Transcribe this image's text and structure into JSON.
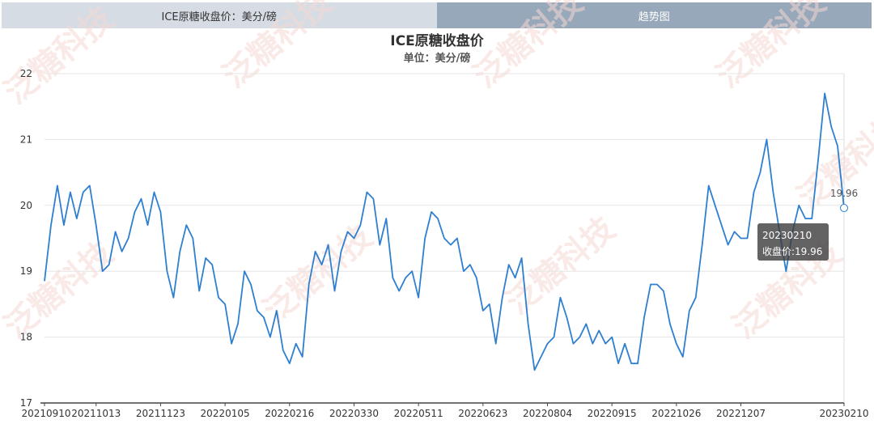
{
  "tabs": [
    "ICE原糖收盘价：美分/磅",
    "趋势图"
  ],
  "watermark": "泛糖科技",
  "chart_data": {
    "type": "line",
    "title": "ICE原糖收盘价",
    "subtitle": "单位：美分/磅",
    "categories": [
      "20210910",
      null,
      null,
      null,
      null,
      null,
      null,
      null,
      "20211013",
      null,
      null,
      null,
      null,
      null,
      null,
      null,
      null,
      null,
      "20211123",
      null,
      null,
      null,
      null,
      null,
      null,
      null,
      null,
      null,
      "20220105",
      null,
      null,
      null,
      null,
      null,
      null,
      null,
      null,
      null,
      "20220216",
      null,
      null,
      null,
      null,
      null,
      null,
      null,
      null,
      null,
      "20220330",
      null,
      null,
      null,
      null,
      null,
      null,
      null,
      null,
      null,
      "20220511",
      null,
      null,
      null,
      null,
      null,
      null,
      null,
      null,
      null,
      "20220623",
      null,
      null,
      null,
      null,
      null,
      null,
      null,
      null,
      null,
      "20220804",
      null,
      null,
      null,
      null,
      null,
      null,
      null,
      null,
      null,
      "20220915",
      null,
      null,
      null,
      null,
      null,
      null,
      null,
      null,
      null,
      "20221026",
      null,
      null,
      null,
      null,
      null,
      null,
      null,
      null,
      null,
      "20221207",
      null,
      null,
      null,
      null,
      null,
      null,
      null,
      null,
      null,
      null,
      null,
      null,
      null,
      null,
      null,
      "20230210"
    ],
    "values": [
      18.85,
      19.7,
      20.3,
      19.7,
      20.2,
      19.8,
      20.2,
      20.3,
      19.7,
      19.0,
      19.1,
      19.6,
      19.3,
      19.5,
      19.9,
      20.1,
      19.7,
      20.2,
      19.9,
      19.0,
      18.6,
      19.3,
      19.7,
      19.5,
      18.7,
      19.2,
      19.1,
      18.6,
      18.5,
      17.9,
      18.2,
      19.0,
      18.8,
      18.4,
      18.3,
      18.0,
      18.4,
      17.8,
      17.6,
      17.9,
      17.7,
      18.8,
      19.3,
      19.1,
      19.4,
      18.7,
      19.3,
      19.6,
      19.5,
      19.7,
      20.2,
      20.1,
      19.4,
      19.8,
      18.9,
      18.7,
      18.9,
      19.0,
      18.6,
      19.5,
      19.9,
      19.8,
      19.5,
      19.4,
      19.5,
      19.0,
      19.1,
      18.9,
      18.4,
      18.5,
      17.9,
      18.6,
      19.1,
      18.9,
      19.2,
      18.2,
      17.5,
      17.7,
      17.9,
      18.0,
      18.6,
      18.3,
      17.9,
      18.0,
      18.2,
      17.9,
      18.1,
      17.9,
      18.0,
      17.6,
      17.9,
      17.6,
      17.6,
      18.3,
      18.8,
      18.8,
      18.7,
      18.2,
      17.9,
      17.7,
      18.4,
      18.6,
      19.4,
      20.3,
      20.0,
      19.7,
      19.4,
      19.6,
      19.5,
      19.5,
      20.2,
      20.5,
      21.0,
      20.2,
      19.6,
      19.0,
      19.6,
      20.0,
      19.8,
      19.8,
      20.7,
      21.7,
      21.2,
      20.9,
      19.96
    ],
    "color": "#2f7fd0",
    "ylim": [
      17,
      22
    ],
    "yticks": [
      17,
      18,
      19,
      20,
      21,
      22
    ],
    "grid": true,
    "tooltip_label": "收盘价:"
  }
}
